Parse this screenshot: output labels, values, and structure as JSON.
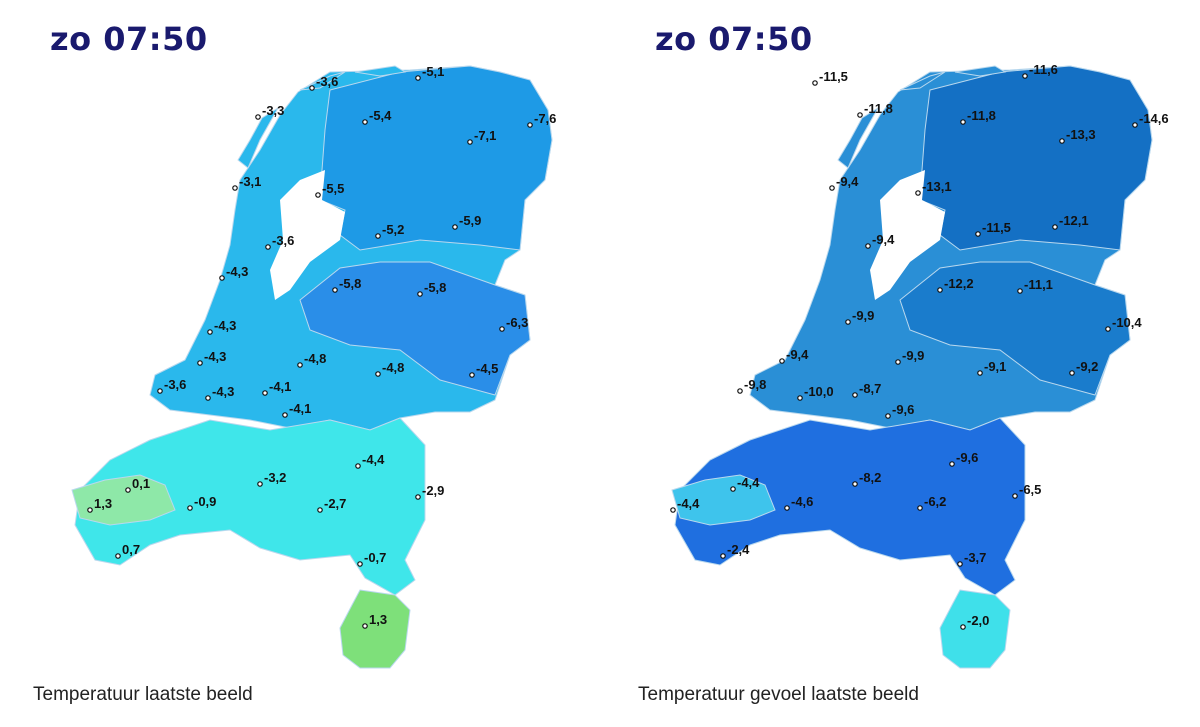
{
  "panels": [
    {
      "time": "zo 07:50",
      "caption": "Temperatuur laatste beeld",
      "colors": {
        "main": "#2ab8ec",
        "north": "#1e9ae6",
        "east": "#2a8ee8",
        "south": "#3fe6ea",
        "southwest": "#8ee8a8",
        "limburg": "#7ee07a"
      },
      "labels": [
        "-3,6",
        "-5,1",
        "-3,3",
        "-5,4",
        "-7,1",
        "-7,6",
        "-3,1",
        "-5,5",
        "-3,6",
        "-5,2",
        "-5,9",
        "-4,3",
        "-5,8",
        "-5,8",
        "-4,3",
        "-6,3",
        "-4,3",
        "-4,8",
        "-4,8",
        "-4,5",
        "-3,6",
        "-4,3",
        "-4,1",
        "-4,1",
        "-4,4",
        "0,1",
        "-3,2",
        "1,3",
        "-0,9",
        "-2,7",
        "-2,9",
        "0,7",
        "-0,7",
        "1,3"
      ]
    },
    {
      "time": "zo 07:50",
      "caption": "Temperatuur gevoel laatste beeld",
      "colors": {
        "main": "#2a8fd6",
        "north": "#1470c4",
        "east": "#1a7ccc",
        "south": "#1f6fe0",
        "southwest": "#3ec4ec",
        "limburg": "#3fe0ea"
      },
      "labels": [
        "-11,5",
        "-11,6",
        "-11,8",
        "-11,8",
        "-13,3",
        "-14,6",
        "-9,4",
        "-13,1",
        "-9,4",
        "-11,5",
        "-12,1",
        "-12,2",
        "-11,1",
        "-9,9",
        "-10,4",
        "-9,4",
        "-9,9",
        "-9,1",
        "-9,2",
        "-9,8",
        "-10,0",
        "-8,7",
        "-9,6",
        "-9,6",
        "-4,4",
        "-8,2",
        "-4,4",
        "-4,6",
        "-6,2",
        "-6,5",
        "-2,4",
        "-3,7",
        "-2,0"
      ]
    }
  ]
}
